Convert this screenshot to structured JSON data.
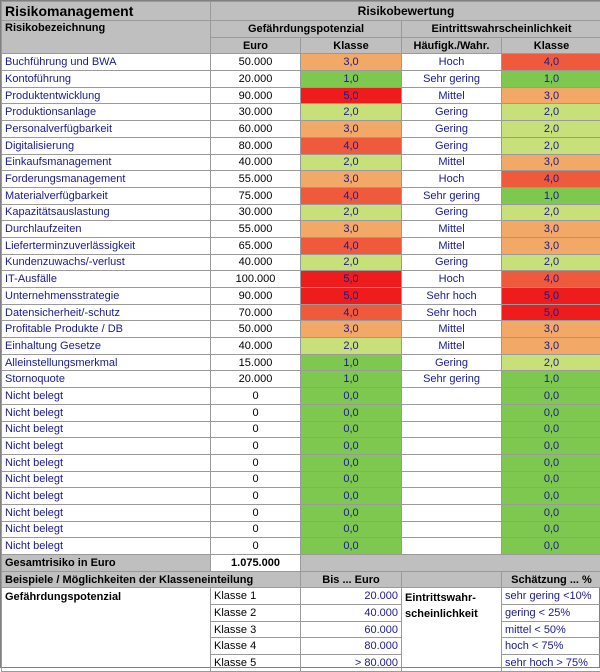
{
  "title": "Risikomanagement",
  "group_header": "Risikobewertung",
  "col_name_header": "Risikobezeichnung",
  "gp_header": "Gefährdungspotenzial",
  "ew_header": "Eintrittswahrscheinlichkeit",
  "sub_euro": "Euro",
  "sub_klasse1": "Klasse",
  "sub_freq": "Häufigk./Wahr.",
  "sub_klasse2": "Klasse",
  "colors": {
    "c1": "#7ec850",
    "c2": "#c8e07a",
    "c3": "#f2a866",
    "c4": "#f05a3c",
    "c5": "#ee1c1c",
    "c0": "#7ec850"
  },
  "rows": [
    {
      "name": "Buchführung und BWA",
      "euro": "50.000",
      "k1": "3,0",
      "freq": "Hoch",
      "k2": "4,0",
      "c1": "c3",
      "c2": "c4"
    },
    {
      "name": "Kontoführung",
      "euro": "20.000",
      "k1": "1,0",
      "freq": "Sehr gering",
      "k2": "1,0",
      "c1": "c1",
      "c2": "c1"
    },
    {
      "name": "Produktentwicklung",
      "euro": "90.000",
      "k1": "5,0",
      "freq": "Mittel",
      "k2": "3,0",
      "c1": "c5",
      "c2": "c3"
    },
    {
      "name": "Produktionsanlage",
      "euro": "30.000",
      "k1": "2,0",
      "freq": "Gering",
      "k2": "2,0",
      "c1": "c2",
      "c2": "c2"
    },
    {
      "name": "Personalverfügbarkeit",
      "euro": "60.000",
      "k1": "3,0",
      "freq": "Gering",
      "k2": "2,0",
      "c1": "c3",
      "c2": "c2"
    },
    {
      "name": "Digitalisierung",
      "euro": "80.000",
      "k1": "4,0",
      "freq": "Gering",
      "k2": "2,0",
      "c1": "c4",
      "c2": "c2"
    },
    {
      "name": "Einkaufsmanagement",
      "euro": "40.000",
      "k1": "2,0",
      "freq": "Mittel",
      "k2": "3,0",
      "c1": "c2",
      "c2": "c3"
    },
    {
      "name": "Forderungsmanagement",
      "euro": "55.000",
      "k1": "3,0",
      "freq": "Hoch",
      "k2": "4,0",
      "c1": "c3",
      "c2": "c4"
    },
    {
      "name": "Materialverfügbarkeit",
      "euro": "75.000",
      "k1": "4,0",
      "freq": "Sehr gering",
      "k2": "1,0",
      "c1": "c4",
      "c2": "c1"
    },
    {
      "name": "Kapazitätsauslastung",
      "euro": "30.000",
      "k1": "2,0",
      "freq": "Gering",
      "k2": "2,0",
      "c1": "c2",
      "c2": "c2"
    },
    {
      "name": "Durchlaufzeiten",
      "euro": "55.000",
      "k1": "3,0",
      "freq": "Mittel",
      "k2": "3,0",
      "c1": "c3",
      "c2": "c3"
    },
    {
      "name": "Lieferterminzuverlässigkeit",
      "euro": "65.000",
      "k1": "4,0",
      "freq": "Mittel",
      "k2": "3,0",
      "c1": "c4",
      "c2": "c3"
    },
    {
      "name": "Kundenzuwachs/-verlust",
      "euro": "40.000",
      "k1": "2,0",
      "freq": "Gering",
      "k2": "2,0",
      "c1": "c2",
      "c2": "c2"
    },
    {
      "name": "IT-Ausfälle",
      "euro": "100.000",
      "k1": "5,0",
      "freq": "Hoch",
      "k2": "4,0",
      "c1": "c5",
      "c2": "c4"
    },
    {
      "name": "Unternehmensstrategie",
      "euro": "90.000",
      "k1": "5,0",
      "freq": "Sehr hoch",
      "k2": "5,0",
      "c1": "c5",
      "c2": "c5"
    },
    {
      "name": "Datensicherheit/-schutz",
      "euro": "70.000",
      "k1": "4,0",
      "freq": "Sehr hoch",
      "k2": "5,0",
      "c1": "c4",
      "c2": "c5"
    },
    {
      "name": "Profitable Produkte / DB",
      "euro": "50.000",
      "k1": "3,0",
      "freq": "Mittel",
      "k2": "3,0",
      "c1": "c3",
      "c2": "c3"
    },
    {
      "name": "Einhaltung Gesetze",
      "euro": "40.000",
      "k1": "2,0",
      "freq": "Mittel",
      "k2": "3,0",
      "c1": "c2",
      "c2": "c3"
    },
    {
      "name": "Alleinstellungsmerkmal",
      "euro": "15.000",
      "k1": "1,0",
      "freq": "Gering",
      "k2": "2,0",
      "c1": "c1",
      "c2": "c2"
    },
    {
      "name": "Stornoquote",
      "euro": "20.000",
      "k1": "1,0",
      "freq": "Sehr gering",
      "k2": "1,0",
      "c1": "c1",
      "c2": "c1"
    },
    {
      "name": "Nicht belegt",
      "euro": "0",
      "k1": "0,0",
      "freq": "",
      "k2": "0,0",
      "c1": "c0",
      "c2": "c0"
    },
    {
      "name": "Nicht belegt",
      "euro": "0",
      "k1": "0,0",
      "freq": "",
      "k2": "0,0",
      "c1": "c0",
      "c2": "c0"
    },
    {
      "name": "Nicht belegt",
      "euro": "0",
      "k1": "0,0",
      "freq": "",
      "k2": "0,0",
      "c1": "c0",
      "c2": "c0"
    },
    {
      "name": "Nicht belegt",
      "euro": "0",
      "k1": "0,0",
      "freq": "",
      "k2": "0,0",
      "c1": "c0",
      "c2": "c0"
    },
    {
      "name": "Nicht belegt",
      "euro": "0",
      "k1": "0,0",
      "freq": "",
      "k2": "0,0",
      "c1": "c0",
      "c2": "c0"
    },
    {
      "name": "Nicht belegt",
      "euro": "0",
      "k1": "0,0",
      "freq": "",
      "k2": "0,0",
      "c1": "c0",
      "c2": "c0"
    },
    {
      "name": "Nicht belegt",
      "euro": "0",
      "k1": "0,0",
      "freq": "",
      "k2": "0,0",
      "c1": "c0",
      "c2": "c0"
    },
    {
      "name": "Nicht belegt",
      "euro": "0",
      "k1": "0,0",
      "freq": "",
      "k2": "0,0",
      "c1": "c0",
      "c2": "c0"
    },
    {
      "name": "Nicht belegt",
      "euro": "0",
      "k1": "0,0",
      "freq": "",
      "k2": "0,0",
      "c1": "c0",
      "c2": "c0"
    },
    {
      "name": "Nicht belegt",
      "euro": "0",
      "k1": "0,0",
      "freq": "",
      "k2": "0,0",
      "c1": "c0",
      "c2": "c0"
    }
  ],
  "total_label": "Gesamtrisiko in Euro",
  "total_value": "1.075.000",
  "legend_header": "Beispiele / Möglichkeiten der Klasseneinteilung",
  "legend_bis": "Bis ... Euro",
  "legend_schaetzung": "Schätzung ... %",
  "legend_gp": "Gefährdungspotenzial",
  "legend_ew_line1": "Eintrittswahr-",
  "legend_ew_line2": "scheinlichkeit",
  "legend_rows": [
    {
      "klasse": "Klasse 1",
      "bis": "20.000",
      "est": "sehr gering <10%"
    },
    {
      "klasse": "Klasse 2",
      "bis": "40.000",
      "est": "gering < 25%"
    },
    {
      "klasse": "Klasse 3",
      "bis": "60.000",
      "est": "mittel < 50%"
    },
    {
      "klasse": "Klasse 4",
      "bis": "80.000",
      "est": "hoch < 75%"
    },
    {
      "klasse": "Klasse 5",
      "bis": "> 80.000",
      "est": "sehr hoch > 75%"
    }
  ]
}
